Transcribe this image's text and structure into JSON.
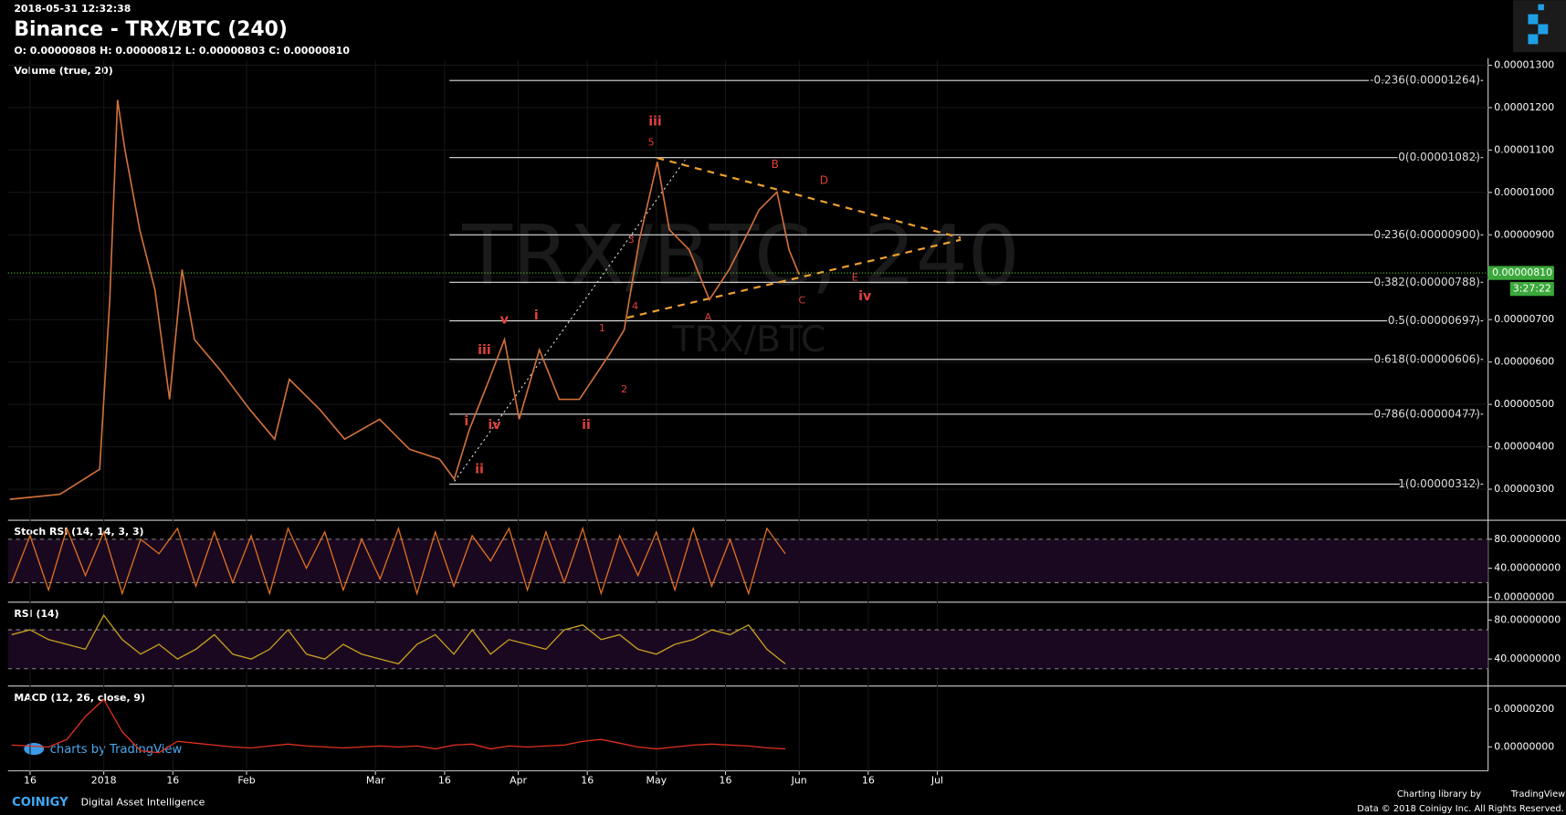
{
  "header": {
    "timestamp": "2018-05-31 12:32:38",
    "title": "Binance - TRX/BTC (240)",
    "ohlc": "O: 0.00000808 H: 0.00000812 L: 0.00000803 C: 0.00000810"
  },
  "watermark": "TRX/BTC, 240",
  "watermark_sub": "TRX/BTC",
  "chart_data": {
    "type": "line",
    "volume_label": "Volume (true, 20)",
    "color": "#d0703a",
    "grid": true,
    "x": [
      -20.4,
      -9.5,
      -0.9,
      1.3,
      3,
      4.6,
      7.8,
      11.1,
      14.3,
      17,
      19.7,
      25.2,
      31.7,
      37.1,
      40.3,
      46.9,
      52.3,
      59.9,
      66.4,
      72.9,
      76.1,
      79.4,
      83.7,
      87,
      90.2,
      94.6,
      98.9,
      103.3,
      109.8,
      113,
      116.3,
      120.2,
      122.8,
      127.1,
      131.5,
      135.8,
      140.2,
      142.3,
      146.2,
      148.8,
      151
    ],
    "values": [
      2.76e-06,
      2.88e-06,
      3.47e-06,
      7.47e-06,
      1.218e-05,
      1.1e-05,
      9.12e-06,
      7.71e-06,
      5.12e-06,
      8.18e-06,
      6.53e-06,
      5.82e-06,
      4.88e-06,
      4.18e-06,
      5.59e-06,
      4.88e-06,
      4.18e-06,
      4.65e-06,
      3.94e-06,
      3.71e-06,
      3.24e-06,
      4.41e-06,
      5.59e-06,
      6.53e-06,
      4.65e-06,
      6.29e-06,
      5.12e-06,
      5.12e-06,
      6.18e-06,
      6.76e-06,
      8.88e-06,
      1.072e-05,
      9.12e-06,
      8.65e-06,
      7.47e-06,
      8.18e-06,
      9.12e-06,
      9.59e-06,
      1.001e-05,
      8.65e-06,
      8.06e-06
    ],
    "xlim": [
      -20.8,
      300.6
    ],
    "xticks": [
      {
        "value": -16,
        "label": "16"
      },
      {
        "value": 0,
        "label": "2018"
      },
      {
        "value": 15,
        "label": "16"
      },
      {
        "value": 31,
        "label": "Feb"
      },
      {
        "value": 59,
        "label": "Mar"
      },
      {
        "value": 74,
        "label": "16"
      },
      {
        "value": 90,
        "label": "Apr"
      },
      {
        "value": 105,
        "label": "16"
      },
      {
        "value": 120,
        "label": "May"
      },
      {
        "value": 135,
        "label": "16"
      },
      {
        "value": 151,
        "label": "Jun"
      },
      {
        "value": 166,
        "label": "16"
      },
      {
        "value": 181,
        "label": "Jul"
      }
    ],
    "ylim": [
      2.29e-06,
      1.312e-05
    ],
    "yticks": [
      {
        "value": 3e-06,
        "label": "0.00000300"
      },
      {
        "value": 4e-06,
        "label": "0.00000400"
      },
      {
        "value": 5e-06,
        "label": "0.00000500"
      },
      {
        "value": 6e-06,
        "label": "0.00000600"
      },
      {
        "value": 7e-06,
        "label": "0.00000700"
      },
      {
        "value": 8e-06,
        "label": "0.00000800"
      },
      {
        "value": 9e-06,
        "label": "0.00000900"
      },
      {
        "value": 1e-05,
        "label": "0.00001000"
      },
      {
        "value": 1.1e-05,
        "label": "0.00001100"
      },
      {
        "value": 1.2e-05,
        "label": "0.00001200"
      },
      {
        "value": 1.3e-05,
        "label": "0.00001300"
      }
    ],
    "last_price": {
      "value": 8.1e-06,
      "label": "0.00000810"
    },
    "countdown": "3:27:22",
    "fib_levels": [
      {
        "label": "-0.236(0.00001264)",
        "price": 1.264e-05
      },
      {
        "label": "0(0.00001082)",
        "price": 1.082e-05
      },
      {
        "label": "0.236(0.00000900)",
        "price": 9e-06
      },
      {
        "label": "0.382(0.00000788)",
        "price": 7.88e-06
      },
      {
        "label": "0.5(0.00000697)",
        "price": 6.97e-06
      },
      {
        "label": "0.618(0.00000606)",
        "price": 6.06e-06
      },
      {
        "label": "0.786(0.00000477)",
        "price": 4.77e-06
      },
      {
        "label": "1(0.00000312)",
        "price": 3.12e-06
      }
    ],
    "wave_labels": [
      "iii",
      "5",
      "B",
      "D",
      "3",
      "4",
      "A",
      "C",
      "E",
      "iv",
      "1",
      "2",
      "v",
      "i",
      "iii",
      "i",
      "iv",
      "ii",
      "ii"
    ]
  },
  "indicators": {
    "x": [
      -20,
      -16,
      -12,
      -8,
      -4,
      0,
      4,
      8,
      12,
      16,
      20,
      24,
      28,
      32,
      36,
      40,
      44,
      48,
      52,
      56,
      60,
      64,
      68,
      72,
      76,
      80,
      84,
      88,
      92,
      96,
      100,
      104,
      108,
      112,
      116,
      120,
      124,
      128,
      132,
      136,
      140,
      144,
      148
    ],
    "stoch": {
      "label": "Stoch RSI (14, 14, 3, 3)",
      "color": "#e07020",
      "ylim": [
        -5.5,
        104.8
      ],
      "band": [
        20,
        80
      ],
      "yticks": [
        {
          "value": 80,
          "label": "80.00000000"
        },
        {
          "value": 40,
          "label": "40.00000000"
        },
        {
          "value": 0,
          "label": "0.00000000"
        }
      ],
      "values": [
        20,
        85,
        10,
        95,
        30,
        90,
        5,
        80,
        60,
        95,
        15,
        90,
        20,
        85,
        5,
        95,
        40,
        90,
        10,
        80,
        25,
        95,
        5,
        90,
        15,
        85,
        50,
        95,
        10,
        90,
        20,
        95,
        5,
        85,
        30,
        90,
        10,
        95,
        15,
        80,
        5,
        95,
        60
      ]
    },
    "rsi": {
      "label": "RSI (14)",
      "color": "#c8a020",
      "ylim": [
        13.3,
        97.4
      ],
      "band": [
        30,
        70
      ],
      "yticks": [
        {
          "value": 80,
          "label": "80.00000000"
        },
        {
          "value": 40,
          "label": "40.00000000"
        }
      ],
      "values": [
        65,
        70,
        60,
        55,
        50,
        85,
        60,
        45,
        55,
        40,
        50,
        65,
        45,
        40,
        50,
        70,
        45,
        40,
        55,
        45,
        40,
        35,
        55,
        65,
        45,
        70,
        45,
        60,
        55,
        50,
        70,
        75,
        60,
        65,
        50,
        45,
        55,
        60,
        70,
        65,
        75,
        50,
        35
      ]
    },
    "macd": {
      "label": "MACD (12, 26, close, 9)",
      "color": "#e03020",
      "ylim": [
        -1.26e-06,
        3.16e-06
      ],
      "yticks": [
        {
          "value": 2e-06,
          "label": "0.00000200"
        },
        {
          "value": 0,
          "label": "0.00000000"
        }
      ],
      "values": [
        1e-07,
        5e-08,
        0,
        4e-07,
        1.6e-06,
        2.5e-06,
        8e-07,
        -2e-07,
        -3e-07,
        3e-07,
        2e-07,
        1e-07,
        0,
        -5e-08,
        5e-08,
        1.5e-07,
        5e-08,
        0,
        -5e-08,
        0,
        5e-08,
        0,
        5e-08,
        -1e-07,
        1e-07,
        1.5e-07,
        -1e-07,
        5e-08,
        0,
        5e-08,
        1e-07,
        3e-07,
        4e-07,
        2e-07,
        0,
        -1e-07,
        0,
        1e-07,
        1.5e-07,
        1e-07,
        5e-08,
        -5e-08,
        -1e-07
      ]
    }
  },
  "footer": {
    "tradingview_badge": "charts by TradingView",
    "brand": "COINIGY",
    "tagline": "Digital Asset Intelligence",
    "library": "Charting library by",
    "library_name": "TradingView",
    "copyright": "Data © 2018 Coinigy Inc. All Rights Reserved."
  }
}
